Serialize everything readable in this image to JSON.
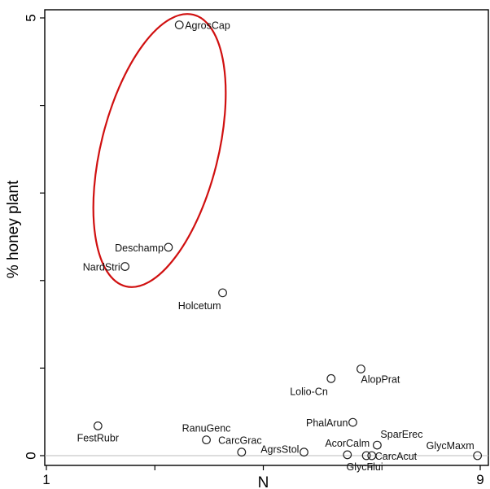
{
  "chart_data": {
    "type": "scatter",
    "title": "",
    "xlabel": "N",
    "ylabel": "% honey plant",
    "xlim": [
      1,
      9
    ],
    "ylim": [
      0,
      5
    ],
    "xticks": [
      {
        "value": 1,
        "label": "1"
      },
      {
        "value": 9,
        "label": "9"
      }
    ],
    "yticks": [
      {
        "value": 0,
        "label": "0"
      },
      {
        "value": 5,
        "label": "5"
      }
    ],
    "points": [
      {
        "label": "AgrosCap",
        "x": 3.45,
        "y": 4.92
      },
      {
        "label": "Deschamp",
        "x": 3.25,
        "y": 2.38
      },
      {
        "label": "NardStri",
        "x": 2.45,
        "y": 2.16
      },
      {
        "label": "Holcetum",
        "x": 4.25,
        "y": 1.86
      },
      {
        "label": "AlopPrat",
        "x": 6.8,
        "y": 0.99
      },
      {
        "label": "Lolio-Cn",
        "x": 6.25,
        "y": 0.88
      },
      {
        "label": "FestRubr",
        "x": 1.95,
        "y": 0.34
      },
      {
        "label": "PhalArun",
        "x": 6.65,
        "y": 0.38
      },
      {
        "label": "RanuGenc",
        "x": 3.95,
        "y": 0.18
      },
      {
        "label": "SparErec",
        "x": 7.1,
        "y": 0.12
      },
      {
        "label": "CarcGrac",
        "x": 4.6,
        "y": 0.04
      },
      {
        "label": "AgrsStol",
        "x": 5.75,
        "y": 0.04
      },
      {
        "label": "AcorCalm",
        "x": 6.55,
        "y": 0.01
      },
      {
        "label": "CarcAcut",
        "x": 7.0,
        "y": 0.0
      },
      {
        "label": "GlycFlui",
        "x": 6.9,
        "y": 0.0
      },
      {
        "label": "GlycMaxm",
        "x": 8.95,
        "y": 0.0
      }
    ],
    "annotations": [
      {
        "type": "ellipse",
        "color": "#d01010",
        "encloses": [
          "AgrosCap",
          "Deschamp",
          "NardStri"
        ]
      }
    ],
    "grid": false,
    "legend": "none"
  }
}
